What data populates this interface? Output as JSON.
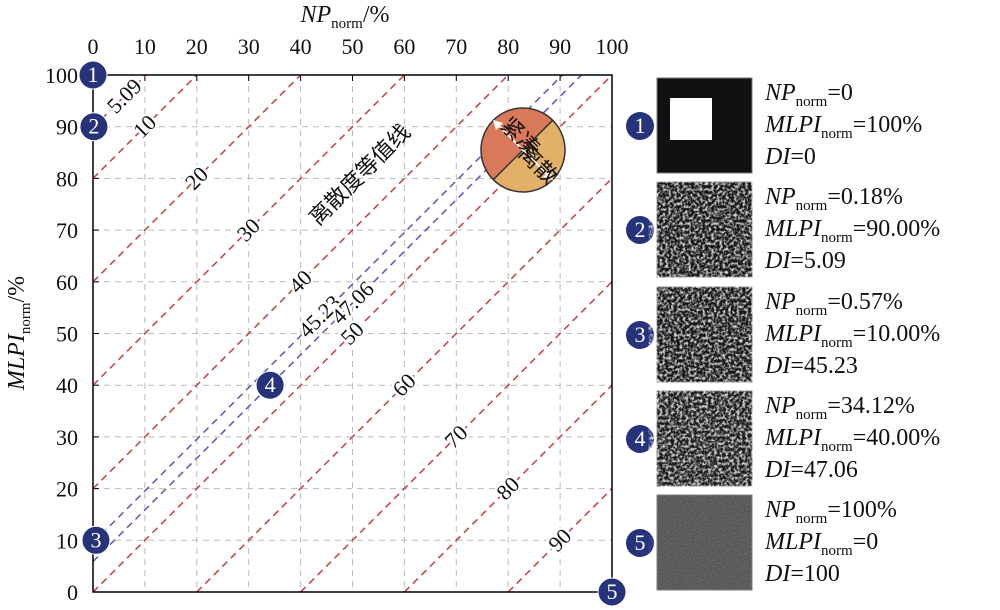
{
  "chart_data": {
    "type": "isoline",
    "x_label": {
      "main": "NP",
      "sub": "norm",
      "unit": "/%"
    },
    "y_label": {
      "main": "MLPI",
      "sub": "norm",
      "unit": "/%"
    },
    "xlim": [
      0,
      100
    ],
    "ylim": [
      0,
      100
    ],
    "xticks": [
      0,
      10,
      20,
      30,
      40,
      50,
      60,
      70,
      80,
      90,
      100
    ],
    "yticks": [
      0,
      10,
      20,
      30,
      40,
      50,
      60,
      70,
      80,
      90,
      100
    ],
    "grid": true,
    "isolines": [
      {
        "color": "#c9474a",
        "values": [
          5.09,
          10,
          20,
          30,
          40,
          50,
          60,
          70,
          80,
          90
        ]
      },
      {
        "color": "#5b62b5",
        "values": [
          45.23,
          47.06
        ]
      }
    ],
    "annotation": "离散度等值线",
    "inset": {
      "top": "紧凑",
      "bottom": "离散",
      "colors": [
        "#d9795a",
        "#e3b06a"
      ]
    },
    "points": {
      "labels": [
        "1",
        "2",
        "3",
        "4",
        "5"
      ],
      "x": [
        0,
        0.18,
        0.57,
        34.12,
        100
      ],
      "y": [
        100,
        90,
        10,
        40,
        0
      ],
      "color": "#26337a"
    }
  },
  "panels": {
    "np": "NP",
    "mlpi": "MLPI",
    "di": "DI",
    "sub": "norm",
    "eq": "=",
    "rows": [
      {
        "np": "0",
        "mlpi": "100%",
        "di": "0"
      },
      {
        "np": "0.18%",
        "mlpi": "90.00%",
        "di": "5.09"
      },
      {
        "np": "0.57%",
        "mlpi": "10.00%",
        "di": "45.23"
      },
      {
        "np": "34.12%",
        "mlpi": "40.00%",
        "di": "47.06"
      },
      {
        "np": "100%",
        "mlpi": "0",
        "di": "100"
      }
    ]
  }
}
